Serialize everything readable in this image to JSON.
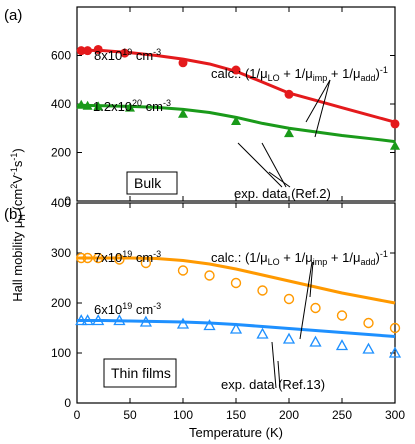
{
  "chart_data": [
    {
      "panel_label": "(a)",
      "type": "line",
      "xlabel": "",
      "ylabel": "Hall mobility μH (cm²V⁻¹s⁻¹)",
      "xlim": [
        0,
        300
      ],
      "ylim": [
        0,
        800
      ],
      "xticks": [
        0,
        50,
        100,
        150,
        200,
        250,
        300
      ],
      "yticks": [
        0,
        200,
        400,
        600,
        800
      ],
      "x_tick_labels_shown": false,
      "box_label": "Bulk",
      "series": [
        {
          "name": "calc.",
          "legend": "8x10¹⁹ cm⁻³",
          "color": "#e41a1c",
          "marker": "filled-circle",
          "calc": {
            "x": [
              0,
              25,
              50,
              75,
              100,
              125,
              150,
              175,
              200,
              225,
              250,
              275,
              300
            ],
            "y": [
              622,
              620,
              612,
              600,
              585,
              565,
              535,
              490,
              445,
              415,
              385,
              355,
              325
            ]
          },
          "exp": {
            "x": [
              4,
              10,
              20,
              45,
              100,
              150,
              200,
              300
            ],
            "y": [
              620,
              620,
              625,
              610,
              570,
              540,
              440,
              318
            ]
          }
        },
        {
          "name": "calc.",
          "legend": "1.2x10²⁰ cm⁻³",
          "color": "#1a9a1a",
          "marker": "filled-triangle",
          "calc": {
            "x": [
              0,
              25,
              50,
              75,
              100,
              125,
              150,
              175,
              200,
              225,
              250,
              275,
              300
            ],
            "y": [
              395,
              393,
              390,
              386,
              378,
              365,
              345,
              320,
              300,
              285,
              270,
              258,
              245
            ]
          },
          "exp": {
            "x": [
              4,
              10,
              20,
              50,
              100,
              150,
              200,
              300
            ],
            "y": [
              397,
              393,
              390,
              385,
              360,
              330,
              280,
              228
            ]
          }
        }
      ],
      "annotations": {
        "calc_formula": "calc.: (1/μLO + 1/μimp + 1/μadd)⁻¹",
        "exp_note": "exp. data (Ref.2)"
      }
    },
    {
      "panel_label": "(b)",
      "type": "line",
      "xlabel": "Temperature (K)",
      "ylabel": "Hall mobility μH (cm²V⁻¹s⁻¹)",
      "xlim": [
        0,
        300
      ],
      "ylim": [
        0,
        400
      ],
      "xticks": [
        0,
        50,
        100,
        150,
        200,
        250,
        300
      ],
      "yticks": [
        0,
        100,
        200,
        300,
        400
      ],
      "x_tick_labels_shown": true,
      "box_label": "Thin films",
      "series": [
        {
          "name": "calc.",
          "legend": "7x10¹⁹ cm⁻³",
          "color": "#ff9900",
          "marker": "open-circle",
          "calc": {
            "x": [
              0,
              25,
              50,
              75,
              100,
              125,
              150,
              175,
              200,
              225,
              250,
              275,
              300
            ],
            "y": [
              290,
              290,
              290,
              289,
              285,
              278,
              268,
              256,
              244,
              232,
              220,
              210,
              200
            ]
          },
          "exp": {
            "x": [
              4,
              10,
              20,
              40,
              65,
              100,
              125,
              150,
              175,
              200,
              225,
              250,
              275,
              300
            ],
            "y": [
              290,
              290,
              290,
              287,
              280,
              265,
              255,
              240,
              225,
              208,
              190,
              175,
              160,
              150
            ]
          }
        },
        {
          "name": "calc.",
          "legend": "6x10¹⁹ cm⁻³",
          "color": "#1e90ff",
          "marker": "open-triangle",
          "calc": {
            "x": [
              0,
              25,
              50,
              75,
              100,
              125,
              150,
              175,
              200,
              225,
              250,
              275,
              300
            ],
            "y": [
              165,
              165,
              164,
              163,
              162,
              160,
              157,
              153,
              149,
              145,
              141,
              137,
              133
            ]
          },
          "exp": {
            "x": [
              4,
              10,
              20,
              40,
              65,
              100,
              125,
              150,
              175,
              200,
              225,
              250,
              275,
              300
            ],
            "y": [
              165,
              165,
              165,
              165,
              162,
              158,
              155,
              148,
              138,
              128,
              122,
              115,
              108,
              100
            ]
          }
        }
      ],
      "annotations": {
        "calc_formula": "calc.: (1/μLO + 1/μimp + 1/μadd)⁻¹",
        "exp_note": "exp. data (Ref.13)"
      }
    }
  ]
}
